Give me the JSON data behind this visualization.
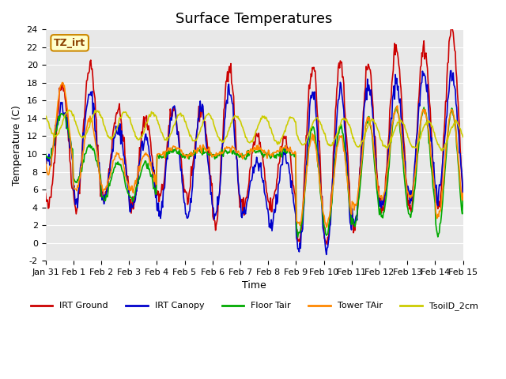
{
  "title": "Surface Temperatures",
  "ylabel": "Temperature (C)",
  "xlabel": "Time",
  "ylim": [
    -2,
    24
  ],
  "yticks": [
    -2,
    0,
    2,
    4,
    6,
    8,
    10,
    12,
    14,
    16,
    18,
    20,
    22,
    24
  ],
  "background_color": "#e8e8e8",
  "legend_label": "TZ_irt",
  "series": {
    "IRT Ground": {
      "color": "#cc0000",
      "lw": 1.2
    },
    "IRT Canopy": {
      "color": "#0000cc",
      "lw": 1.2
    },
    "Floor Tair": {
      "color": "#00aa00",
      "lw": 1.2
    },
    "Tower TAir": {
      "color": "#ff8800",
      "lw": 1.2
    },
    "TsoilD_2cm": {
      "color": "#cccc00",
      "lw": 1.2
    }
  },
  "x_tick_labels": [
    "Jan 31",
    "Feb 1",
    "Feb 2",
    "Feb 3",
    "Feb 4",
    "Feb 5",
    "Feb 6",
    "Feb 7",
    "Feb 8",
    "Feb 9",
    "Feb 10",
    "Feb 11",
    "Feb 12",
    "Feb 13",
    "Feb 14",
    "Feb 15"
  ],
  "title_fontsize": 13,
  "axis_fontsize": 9,
  "tick_fontsize": 8
}
